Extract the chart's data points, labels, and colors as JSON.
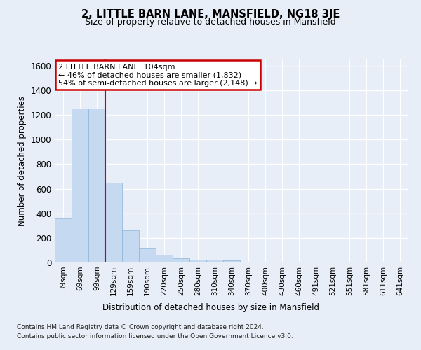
{
  "title": "2, LITTLE BARN LANE, MANSFIELD, NG18 3JE",
  "subtitle": "Size of property relative to detached houses in Mansfield",
  "xlabel": "Distribution of detached houses by size in Mansfield",
  "ylabel": "Number of detached properties",
  "categories": [
    "39sqm",
    "69sqm",
    "99sqm",
    "129sqm",
    "159sqm",
    "190sqm",
    "220sqm",
    "250sqm",
    "280sqm",
    "310sqm",
    "340sqm",
    "370sqm",
    "400sqm",
    "430sqm",
    "460sqm",
    "491sqm",
    "521sqm",
    "551sqm",
    "581sqm",
    "611sqm",
    "641sqm"
  ],
  "values": [
    360,
    1250,
    1250,
    650,
    260,
    115,
    65,
    35,
    25,
    20,
    15,
    8,
    5,
    3,
    2,
    1,
    1,
    0,
    0,
    0,
    0
  ],
  "bar_color": "#c5d9f1",
  "bar_edge_color": "#8ab4d9",
  "red_line_index": 2,
  "annotation_title": "2 LITTLE BARN LANE: 104sqm",
  "annotation_line1": "← 46% of detached houses are smaller (1,832)",
  "annotation_line2": "54% of semi-detached houses are larger (2,148) →",
  "annotation_box_color": "#ffffff",
  "annotation_box_edge": "#cc0000",
  "red_line_color": "#cc0000",
  "ylim": [
    0,
    1650
  ],
  "yticks": [
    0,
    200,
    400,
    600,
    800,
    1000,
    1200,
    1400,
    1600
  ],
  "footer_line1": "Contains HM Land Registry data © Crown copyright and database right 2024.",
  "footer_line2": "Contains public sector information licensed under the Open Government Licence v3.0.",
  "background_color": "#e8eef7",
  "plot_bg_color": "#e8eef7"
}
